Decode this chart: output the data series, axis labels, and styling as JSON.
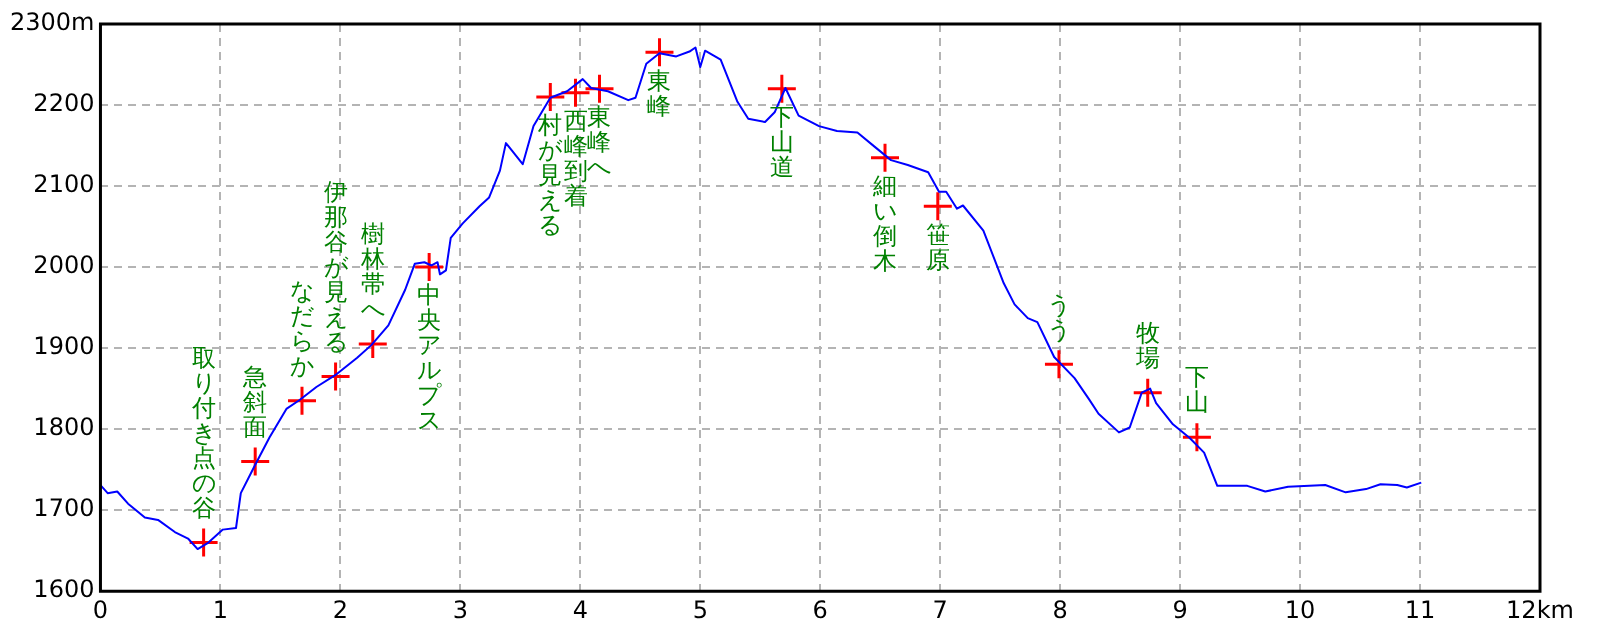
{
  "chart_data": {
    "type": "line",
    "series": [
      {
        "type": "line",
        "color": "#0000ff",
        "marker": "none",
        "x": [
          0,
          0.06,
          0.14,
          0.23,
          0.37,
          0.48,
          0.62,
          0.73,
          0.81,
          0.9,
          1.02,
          1.13,
          1.17,
          1.29,
          1.41,
          1.55,
          1.66,
          1.8,
          1.97,
          2.14,
          2.26,
          2.4,
          2.54,
          2.62,
          2.7,
          2.76,
          2.81,
          2.83,
          2.88,
          2.92,
          3.02,
          3.16,
          3.24,
          3.33,
          3.38,
          3.52,
          3.61,
          3.75,
          3.89,
          4.02,
          4.09,
          4.23,
          4.4,
          4.46,
          4.55,
          4.66,
          4.8,
          4.91,
          4.96,
          5,
          5.04,
          5.17,
          5.31,
          5.4,
          5.54,
          5.62,
          5.71,
          5.82,
          5.99,
          6.14,
          6.31,
          6.45,
          6.59,
          6.73,
          6.9,
          6.99,
          7.05,
          7.14,
          7.19,
          7.36,
          7.53,
          7.62,
          7.73,
          7.81,
          7.95,
          8.12,
          8.24,
          8.32,
          8.49,
          8.58,
          8.68,
          8.75,
          8.8,
          8.94,
          9.08,
          9.2,
          9.31,
          9.56,
          9.71,
          9.9,
          10.21,
          10.38,
          10.55,
          10.67,
          10.81,
          10.89,
          11.01
        ],
        "values": [
          1731,
          1721,
          1723,
          1708,
          1691,
          1688,
          1673,
          1665,
          1652,
          1660,
          1676,
          1678,
          1721,
          1756,
          1790,
          1825,
          1836,
          1852,
          1868,
          1888,
          1904,
          1928,
          1972,
          2004,
          2006,
          2002,
          2006,
          1991,
          1996,
          2036,
          2054,
          2075,
          2086,
          2119,
          2153,
          2127,
          2174,
          2209,
          2217,
          2232,
          2221,
          2217,
          2206,
          2209,
          2251,
          2264,
          2260,
          2266,
          2271,
          2247,
          2267,
          2256,
          2204,
          2183,
          2179,
          2191,
          2221,
          2187,
          2174,
          2168,
          2166,
          2149,
          2132,
          2126,
          2117,
          2093,
          2093,
          2072,
          2076,
          2045,
          1980,
          1954,
          1937,
          1932,
          1889,
          1863,
          1837,
          1819,
          1796,
          1802,
          1845,
          1850,
          1832,
          1806,
          1789,
          1771,
          1730,
          1730,
          1723,
          1729,
          1731,
          1722,
          1726,
          1732,
          1731,
          1728,
          1734
        ]
      },
      {
        "type": "scatter",
        "color": "#ff0000",
        "marker": "cross",
        "x": [
          0.86,
          1.29,
          1.68,
          1.96,
          2.27,
          2.74,
          3.75,
          3.96,
          4.16,
          4.66,
          5.68,
          6.54,
          6.98,
          7.99,
          8.73,
          9.14
        ],
        "values": [
          1660,
          1760,
          1835,
          1865,
          1905,
          2000,
          2210,
          2215,
          2220,
          2265,
          2220,
          2135,
          2075,
          1880,
          1845,
          1790
        ]
      }
    ],
    "xlim": [
      0,
      12
    ],
    "xticks": [
      0,
      1,
      2,
      3,
      4,
      5,
      6,
      7,
      8,
      9,
      10,
      11,
      {
        "value": 12,
        "label": "12km"
      }
    ],
    "ylim": [
      1600,
      2300
    ],
    "yticks": [
      1600,
      1700,
      1800,
      1900,
      2000,
      2100,
      2200,
      {
        "value": 2300,
        "label": "2300m"
      }
    ],
    "grid": true,
    "annotations": [
      {
        "text": "取り付き点の谷",
        "x": 0.86,
        "y": 1660
      },
      {
        "text": "急斜面",
        "x": 1.29,
        "y": 1760
      },
      {
        "text": "なだらか",
        "x": 1.68,
        "y": 1835
      },
      {
        "text": "伊那谷が見える",
        "x": 1.96,
        "y": 1865
      },
      {
        "text": "樹林帯へ",
        "x": 2.27,
        "y": 1905
      },
      {
        "text": "中央アルプス",
        "x": 2.74,
        "y": 2000
      },
      {
        "text": "村が見える",
        "x": 3.75,
        "y": 2210
      },
      {
        "text": "西峰到着",
        "x": 3.96,
        "y": 2215
      },
      {
        "text": "東峰へ",
        "x": 4.16,
        "y": 2220
      },
      {
        "text": "東峰",
        "x": 4.66,
        "y": 2265
      },
      {
        "text": "下山道",
        "x": 5.68,
        "y": 2220
      },
      {
        "text": "細い倒木",
        "x": 6.54,
        "y": 2135
      },
      {
        "text": "笹原",
        "x": 6.98,
        "y": 2075
      },
      {
        "text": "うう",
        "x": 7.99,
        "y": 1880
      },
      {
        "text": "牧場",
        "x": 8.73,
        "y": 1845
      },
      {
        "text": "下山",
        "x": 9.14,
        "y": 1790
      }
    ]
  }
}
